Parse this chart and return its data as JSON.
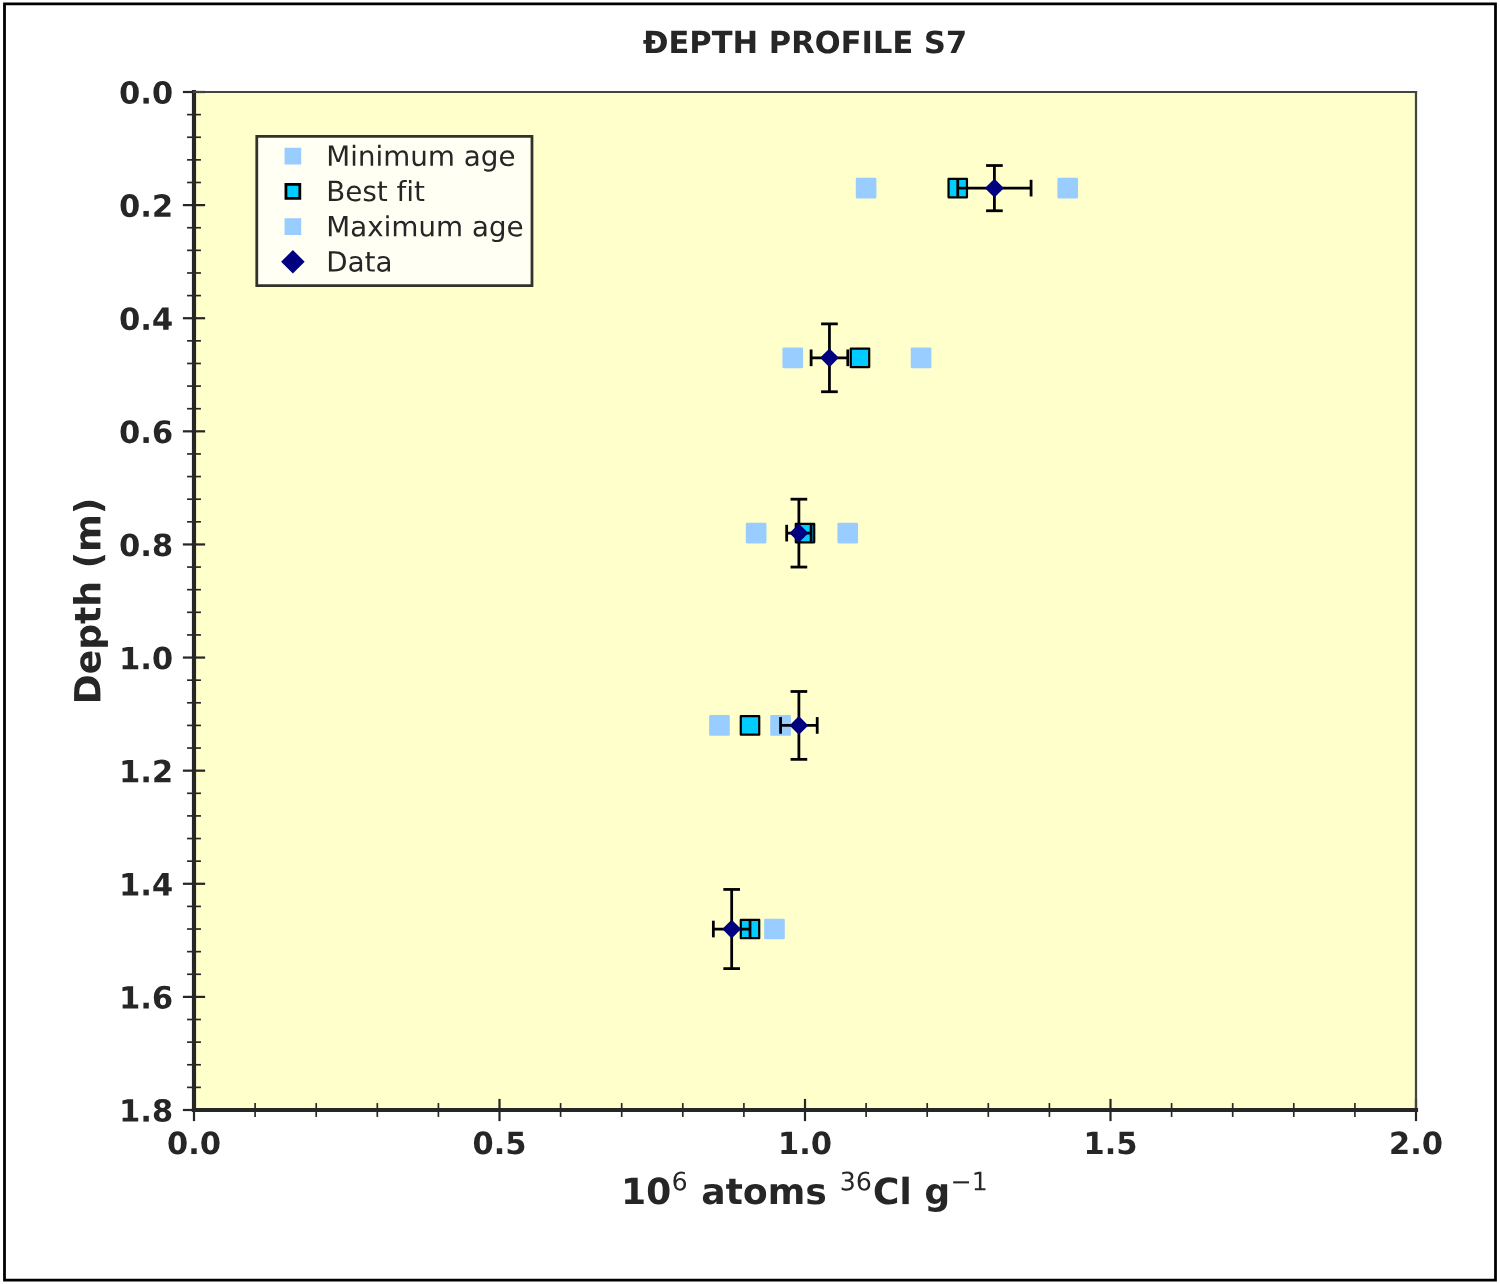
{
  "chart_data": {
    "type": "scatter",
    "title": "ĐEPTH PROFILE S7",
    "xlabel": "10$^{6}$ atoms $^{36}$Cl g$^{−1}$",
    "ylabel": "Depth (m)",
    "xlim": [
      0.0,
      2.0
    ],
    "xticks": [
      {
        "value": 0,
        "label": "0.0"
      },
      0.5,
      {
        "value": 1,
        "label": "1.0"
      },
      1.5,
      {
        "value": 2,
        "label": "2.0"
      }
    ],
    "ylim": [
      1.8,
      0.0
    ],
    "yticks": [
      {
        "value": 0,
        "label": "0.0"
      },
      0.2,
      0.4,
      0.6,
      0.8,
      {
        "value": 1,
        "label": "1.0"
      },
      1.2,
      1.4,
      1.6,
      1.8
    ],
    "grid": false,
    "legend": "top left",
    "series": [
      {
        "name": "Minimum age",
        "color": "#99ccff",
        "marker": "square",
        "x": [
          1.1,
          0.98,
          0.92,
          0.86,
          null
        ],
        "values": [
          0.17,
          0.47,
          0.78,
          1.12,
          null
        ]
      },
      {
        "name": "Best fit",
        "color": "#00ccff",
        "marker": "square",
        "x": [
          1.25,
          1.09,
          1.0,
          0.91,
          0.91
        ],
        "values": [
          0.17,
          0.47,
          0.78,
          1.12,
          1.48
        ]
      },
      {
        "name": "Maximum age",
        "color": "#99ccff",
        "marker": "square",
        "x": [
          1.43,
          1.19,
          1.07,
          0.96,
          0.95
        ],
        "values": [
          0.17,
          0.47,
          0.78,
          1.12,
          1.48
        ]
      },
      {
        "name": "Data",
        "color": "#000080",
        "marker": "diamond",
        "x": [
          1.31,
          1.04,
          0.99,
          0.99,
          0.88
        ],
        "values": [
          0.17,
          0.47,
          0.78,
          1.12,
          1.48
        ],
        "errors": [
          0.04,
          0.06,
          0.06,
          0.06,
          0.07
        ],
        "xerrors": [
          0.06,
          0.03,
          0.02,
          0.03,
          0.03
        ]
      }
    ]
  }
}
